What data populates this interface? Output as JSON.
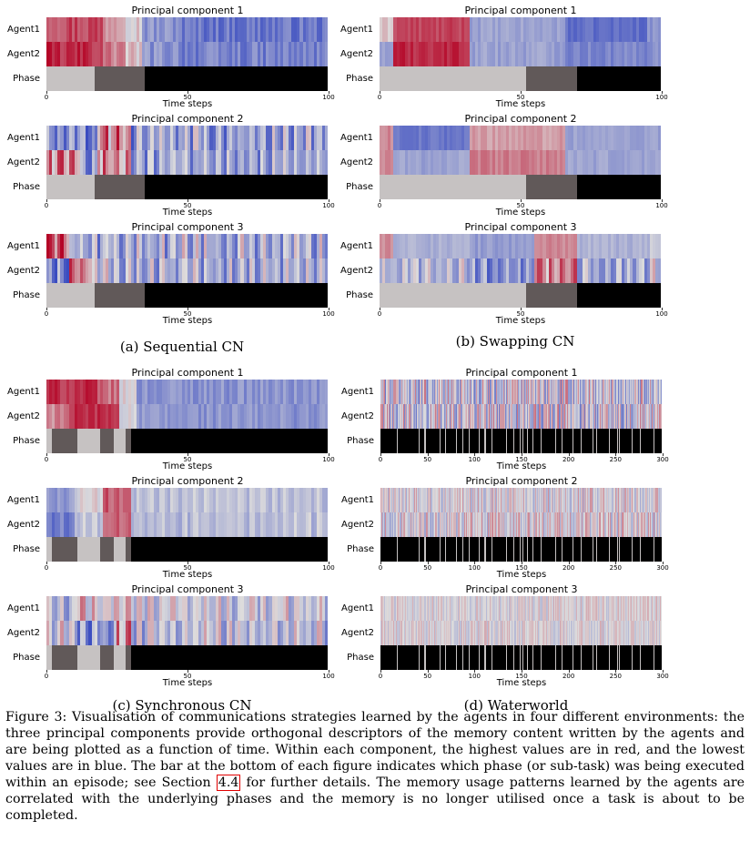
{
  "labels": {
    "agent1": "Agent1",
    "agent2": "Agent2",
    "phase": "Phase",
    "time_steps": "Time steps",
    "pc_titles": [
      "Principal component 1",
      "Principal component 2",
      "Principal component 3"
    ]
  },
  "colors": {
    "low": "#3a4cc0",
    "mid": "#dddcdc",
    "high": "#b40426",
    "phase_light": "#c6c2c2",
    "phase_dark": "#615959",
    "phase_black": "#000000"
  },
  "panels": [
    {
      "id": "a",
      "caption": "(a) Sequential CN",
      "ticks": [
        "0",
        "50",
        "100"
      ],
      "tick_values": [
        0,
        50,
        100
      ],
      "steps": 100,
      "phases": [
        {
          "start": 0,
          "end": 17,
          "kind": "light"
        },
        {
          "start": 17,
          "end": 35,
          "kind": "dark"
        },
        {
          "start": 35,
          "end": 100,
          "kind": "black"
        }
      ],
      "components": [
        {
          "agent1": {
            "base": [
              0.85,
              0.7,
              0.55,
              0.25,
              0.15
            ],
            "bounds": [
              0,
              20,
              28,
              34,
              48,
              100
            ],
            "noise": 0.1,
            "period": 1
          },
          "agent2": {
            "base": [
              0.9,
              0.72,
              0.55,
              0.25,
              0.18
            ],
            "bounds": [
              0,
              20,
              28,
              34,
              48,
              100
            ],
            "noise": 0.1,
            "period": 1
          }
        },
        {
          "agent1": {
            "base": [
              0.25,
              0.12,
              0.7,
              0.3
            ],
            "bounds": [
              0,
              12,
              18,
              30,
              100
            ],
            "noise": 0.16,
            "period": 2
          },
          "agent2": {
            "base": [
              0.7,
              0.2,
              0.7,
              0.3
            ],
            "bounds": [
              0,
              12,
              18,
              30,
              100
            ],
            "noise": 0.14,
            "period": 2
          }
        },
        {
          "agent1": {
            "base": [
              0.85,
              0.3,
              0.35
            ],
            "bounds": [
              0,
              8,
              18,
              100
            ],
            "noise": 0.16,
            "period": 2
          },
          "agent2": {
            "base": [
              0.2,
              0.72,
              0.4,
              0.35
            ],
            "bounds": [
              0,
              8,
              16,
              22,
              100
            ],
            "noise": 0.14,
            "period": 2
          }
        }
      ]
    },
    {
      "id": "b",
      "caption": "(b) Swapping CN",
      "ticks": [
        "0",
        "50",
        "100"
      ],
      "tick_values": [
        0,
        50,
        100
      ],
      "steps": 100,
      "phases": [
        {
          "start": 0,
          "end": 52,
          "kind": "light"
        },
        {
          "start": 52,
          "end": 70,
          "kind": "dark"
        },
        {
          "start": 70,
          "end": 100,
          "kind": "black"
        }
      ],
      "components": [
        {
          "agent1": {
            "base": [
              0.55,
              0.85,
              0.3,
              0.12,
              0.25
            ],
            "bounds": [
              0,
              5,
              32,
              66,
              95,
              100
            ],
            "noise": 0.05,
            "period": 1
          },
          "agent2": {
            "base": [
              0.3,
              0.92,
              0.3,
              0.2,
              0.25
            ],
            "bounds": [
              0,
              5,
              32,
              66,
              95,
              100
            ],
            "noise": 0.06,
            "period": 1
          }
        },
        {
          "agent1": {
            "base": [
              0.7,
              0.15,
              0.65,
              0.3
            ],
            "bounds": [
              0,
              5,
              32,
              66,
              100
            ],
            "noise": 0.05,
            "period": 1
          },
          "agent2": {
            "base": [
              0.7,
              0.3,
              0.72,
              0.3
            ],
            "bounds": [
              0,
              5,
              32,
              66,
              100
            ],
            "noise": 0.05,
            "period": 1
          }
        },
        {
          "agent1": {
            "base": [
              0.7,
              0.35,
              0.28,
              0.7,
              0.35,
              0.45
            ],
            "bounds": [
              0,
              5,
              32,
              55,
              70,
              96,
              100
            ],
            "noise": 0.05,
            "period": 1
          },
          "agent2": {
            "base": [
              0.35,
              0.4,
              0.25,
              0.7,
              0.35,
              0.45
            ],
            "bounds": [
              0,
              5,
              32,
              55,
              70,
              96,
              100
            ],
            "noise": 0.12,
            "period": 2
          }
        }
      ]
    },
    {
      "id": "c",
      "caption": "(c) Synchronous CN",
      "ticks": [
        "0",
        "50",
        "100"
      ],
      "tick_values": [
        0,
        50,
        100
      ],
      "steps": 100,
      "phases": [
        {
          "start": 0,
          "end": 2,
          "kind": "light"
        },
        {
          "start": 2,
          "end": 11,
          "kind": "dark"
        },
        {
          "start": 11,
          "end": 19,
          "kind": "light"
        },
        {
          "start": 19,
          "end": 24,
          "kind": "dark"
        },
        {
          "start": 24,
          "end": 28,
          "kind": "light"
        },
        {
          "start": 28,
          "end": 30,
          "kind": "dark"
        },
        {
          "start": 30,
          "end": 100,
          "kind": "black"
        }
      ],
      "components": [
        {
          "agent1": {
            "base": [
              0.9,
              0.75,
              0.5,
              0.25
            ],
            "bounds": [
              0,
              18,
              26,
              32,
              100
            ],
            "noise": 0.08,
            "period": 1
          },
          "agent2": {
            "base": [
              0.7,
              0.9,
              0.5,
              0.25
            ],
            "bounds": [
              0,
              8,
              26,
              32,
              100
            ],
            "noise": 0.08,
            "period": 1
          }
        },
        {
          "agent1": {
            "base": [
              0.25,
              0.5,
              0.8,
              0.4
            ],
            "bounds": [
              0,
              10,
              20,
              30,
              100
            ],
            "noise": 0.05,
            "period": 2
          },
          "agent2": {
            "base": [
              0.15,
              0.4,
              0.75,
              0.4
            ],
            "bounds": [
              0,
              10,
              20,
              30,
              100
            ],
            "noise": 0.06,
            "period": 2
          }
        },
        {
          "agent1": {
            "base": [
              0.4,
              0.55,
              0.45
            ],
            "bounds": [
              0,
              10,
              30,
              100
            ],
            "noise": 0.12,
            "period": 2
          },
          "agent2": {
            "base": [
              0.45,
              0.25,
              0.65,
              0.4
            ],
            "bounds": [
              0,
              10,
              25,
              30,
              100
            ],
            "noise": 0.14,
            "period": 2
          }
        }
      ]
    },
    {
      "id": "d",
      "caption": "(d) Waterworld",
      "ticks": [
        "0",
        "50",
        "100",
        "150",
        "200",
        "250",
        "300"
      ],
      "tick_values": [
        0,
        50,
        100,
        150,
        200,
        250,
        300
      ],
      "steps": 300,
      "phases": [
        {
          "start": 0,
          "end": 300,
          "kind": "black"
        }
      ],
      "flickers": [
        17,
        41,
        47,
        63,
        69,
        80,
        87,
        94,
        105,
        111,
        118,
        134,
        142,
        148,
        151,
        156,
        162,
        171,
        186,
        193,
        205,
        213,
        226,
        230,
        243,
        252,
        254,
        268,
        276,
        291
      ],
      "components": [
        {
          "agent1": {
            "base": [
              0.45
            ],
            "bounds": [
              0,
              300
            ],
            "noise": 0.3,
            "period": 1
          },
          "agent2": {
            "base": [
              0.45
            ],
            "bounds": [
              0,
              300
            ],
            "noise": 0.3,
            "period": 1
          }
        },
        {
          "agent1": {
            "base": [
              0.5
            ],
            "bounds": [
              0,
              300
            ],
            "noise": 0.18,
            "period": 1
          },
          "agent2": {
            "base": [
              0.5
            ],
            "bounds": [
              0,
              300
            ],
            "noise": 0.2,
            "period": 1
          }
        },
        {
          "agent1": {
            "base": [
              0.5
            ],
            "bounds": [
              0,
              300
            ],
            "noise": 0.12,
            "period": 1
          },
          "agent2": {
            "base": [
              0.5
            ],
            "bounds": [
              0,
              300
            ],
            "noise": 0.12,
            "period": 1
          }
        }
      ]
    }
  ],
  "caption": {
    "before": "Figure 3: Visualisation of communications strategies learned by the agents in four different environments: the three principal components provide orthogonal descriptors of the memory content written by the agents and are being plotted as a function of time. Within each component, the highest values are in red, and the lowest values are in blue. The bar at the bottom of each figure indicates which phase (or sub-task) was being executed within an episode; see Section",
    "ref": "4.4",
    "after": "for further details. The memory usage patterns learned by the agents are correlated with the underlying phases and the memory is no longer utilised once a task is about to be completed."
  }
}
